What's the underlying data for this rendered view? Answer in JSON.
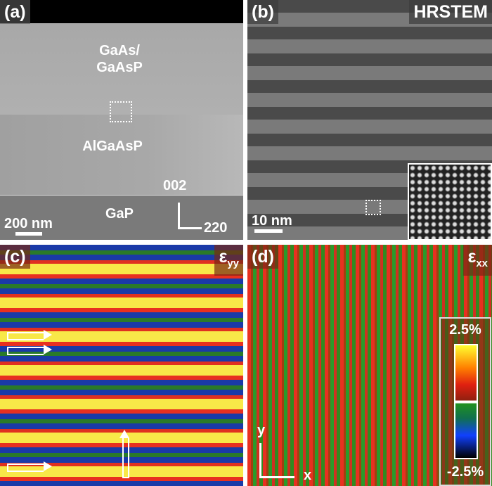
{
  "panel_a": {
    "label": "(a)",
    "layer_top": "GaAs/\nGaAsP",
    "layer_top_line1": "GaAs/",
    "layer_top_line2": "GaAsP",
    "layer_mid": "AlGaAsP",
    "layer_bottom": "GaP",
    "scale": "200 nm",
    "dir_up": "002",
    "dir_right": "220"
  },
  "panel_b": {
    "label": "(b)",
    "title": "HRSTEM",
    "scale": "10 nm"
  },
  "panel_c": {
    "label": "(c)",
    "component": "ε",
    "component_sub": "yy"
  },
  "panel_d": {
    "label": "(d)",
    "component": "ε",
    "component_sub": "xx",
    "colorbar_max": "2.5%",
    "colorbar_min": "-2.5%",
    "axis_y": "y",
    "axis_x": "x"
  }
}
